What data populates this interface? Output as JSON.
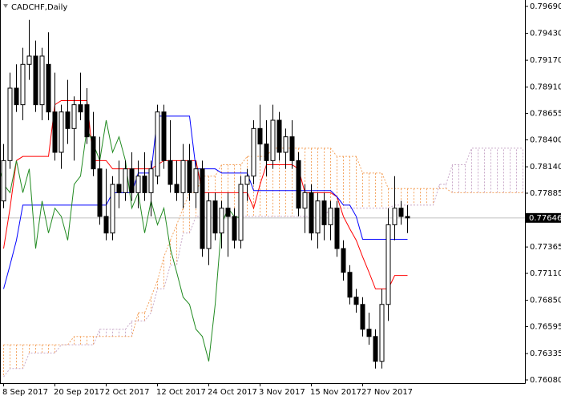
{
  "chart_data": {
    "type": "candlestick",
    "title": "CADCHF,Daily",
    "categories": [
      "8 Sep 2017",
      null,
      null,
      null,
      null,
      null,
      null,
      null,
      "20 Sep 2017",
      null,
      null,
      null,
      null,
      null,
      null,
      null,
      "2 Oct 2017",
      null,
      null,
      null,
      null,
      null,
      null,
      null,
      "12 Oct 2017",
      null,
      null,
      null,
      null,
      null,
      null,
      null,
      "24 Oct 2017",
      null,
      null,
      null,
      null,
      null,
      null,
      null,
      "3 Nov 2017",
      null,
      null,
      null,
      null,
      null,
      null,
      null,
      "15 Nov 2017",
      null,
      null,
      null,
      null,
      null,
      null,
      null,
      "27 Nov 2017",
      null,
      null,
      null,
      null,
      null,
      null,
      null,
      null,
      null,
      null,
      null,
      null,
      null,
      null,
      null,
      null,
      null,
      null,
      null,
      null,
      null,
      null,
      null,
      null,
      null
    ],
    "ylim": [
      0.76049,
      0.79752
    ],
    "yticks": [
      {
        "value": 0.7969,
        "label": "0.79690"
      },
      {
        "value": 0.7943,
        "label": "0.79430"
      },
      {
        "value": 0.7917,
        "label": "0.79170"
      },
      {
        "value": 0.7891,
        "label": "0.78910"
      },
      {
        "value": 0.78655,
        "label": "0.78655"
      },
      {
        "value": 0.784,
        "label": "0.78400"
      },
      {
        "value": 0.7814,
        "label": "0.78140"
      },
      {
        "value": 0.77885,
        "label": "0.77885"
      },
      {
        "value": 0.77365,
        "label": "0.77365"
      },
      {
        "value": 0.7711,
        "label": "0.77110"
      },
      {
        "value": 0.7685,
        "label": "0.76850"
      },
      {
        "value": 0.76595,
        "label": "0.76595"
      },
      {
        "value": 0.76335,
        "label": "0.76335"
      },
      {
        "value": 0.7608,
        "label": "0.76080"
      }
    ],
    "ohlc": {
      "open": [
        0.7781,
        0.782,
        0.789,
        0.7874,
        0.7913,
        0.7921,
        0.7874,
        0.7913,
        0.7867,
        0.7828,
        0.7867,
        0.7851,
        0.7874,
        0.7874,
        0.7843,
        0.7812,
        0.7766,
        0.775,
        0.7797,
        0.7789,
        0.7812,
        0.7789,
        0.7805,
        0.7789,
        0.7805,
        0.7867,
        0.782,
        0.7797,
        0.7789,
        0.782,
        0.7789,
        0.7812,
        0.7735,
        0.7781,
        0.775,
        0.7774,
        0.7766,
        0.7743,
        0.7797,
        0.7805,
        0.7851,
        0.7836,
        0.782,
        0.7859,
        0.7828,
        0.7843,
        0.782,
        0.7774,
        0.7789,
        0.775,
        0.7781,
        0.7758,
        0.7774,
        0.7735,
        0.7712,
        0.7688,
        0.7681,
        0.7657,
        0.765,
        0.7626,
        0.7681,
        0.7758,
        0.7774,
        0.7766
      ],
      "high": [
        0.7836,
        0.7905,
        0.7913,
        0.7929,
        0.7956,
        0.7936,
        0.7929,
        0.7944,
        0.7905,
        0.7874,
        0.7898,
        0.7882,
        0.7905,
        0.789,
        0.7867,
        0.7843,
        0.7812,
        0.7805,
        0.782,
        0.782,
        0.7828,
        0.782,
        0.7828,
        0.782,
        0.7874,
        0.7874,
        0.7859,
        0.782,
        0.7836,
        0.7836,
        0.782,
        0.782,
        0.7789,
        0.7789,
        0.7781,
        0.7789,
        0.7774,
        0.7805,
        0.7812,
        0.7859,
        0.7874,
        0.7859,
        0.7874,
        0.7867,
        0.7851,
        0.7859,
        0.7828,
        0.7797,
        0.7797,
        0.7789,
        0.7789,
        0.7781,
        0.7781,
        0.7743,
        0.7719,
        0.7696,
        0.7688,
        0.7673,
        0.7657,
        0.7696,
        0.7774,
        0.7805,
        0.7781,
        0.7777
      ],
      "low": [
        0.7774,
        0.7812,
        0.7867,
        0.7859,
        0.7898,
        0.7867,
        0.7859,
        0.7859,
        0.782,
        0.7812,
        0.7836,
        0.782,
        0.7859,
        0.7836,
        0.7805,
        0.7758,
        0.7743,
        0.7743,
        0.7774,
        0.7781,
        0.7781,
        0.7774,
        0.7781,
        0.7766,
        0.7797,
        0.7812,
        0.7789,
        0.7781,
        0.7774,
        0.7781,
        0.7774,
        0.7727,
        0.7719,
        0.7743,
        0.7735,
        0.7727,
        0.7735,
        0.7735,
        0.7781,
        0.7797,
        0.782,
        0.7805,
        0.7812,
        0.782,
        0.7812,
        0.7812,
        0.7766,
        0.775,
        0.7743,
        0.7735,
        0.7743,
        0.7743,
        0.7727,
        0.7704,
        0.7681,
        0.7673,
        0.765,
        0.7642,
        0.7619,
        0.7619,
        0.7665,
        0.7743,
        0.7758,
        0.775
      ],
      "close": [
        0.782,
        0.789,
        0.7874,
        0.7913,
        0.7921,
        0.7874,
        0.7921,
        0.7867,
        0.7828,
        0.7867,
        0.7851,
        0.7874,
        0.7867,
        0.7843,
        0.7812,
        0.7766,
        0.775,
        0.7797,
        0.7789,
        0.7812,
        0.7789,
        0.7805,
        0.7789,
        0.7812,
        0.7867,
        0.782,
        0.7797,
        0.7789,
        0.782,
        0.7789,
        0.7812,
        0.7735,
        0.7781,
        0.775,
        0.7774,
        0.7766,
        0.7743,
        0.7797,
        0.7805,
        0.7851,
        0.7836,
        0.782,
        0.7859,
        0.7828,
        0.7843,
        0.782,
        0.7774,
        0.7789,
        0.775,
        0.7781,
        0.7758,
        0.7774,
        0.7735,
        0.7712,
        0.7688,
        0.7681,
        0.7657,
        0.765,
        0.7626,
        0.7681,
        0.7758,
        0.7774,
        0.7766,
        0.77646
      ]
    },
    "up_color": "#ffffff",
    "down_color": "#000000",
    "tenkan": {
      "color": "#ff0000",
      "values": [
        0.7735,
        0.7774,
        0.782,
        0.7824,
        0.7824,
        0.7824,
        0.7824,
        0.7824,
        0.7874,
        0.7878,
        0.7878,
        0.7878,
        0.7878,
        0.7878,
        0.782,
        0.782,
        0.782,
        0.7812,
        0.7812,
        0.7812,
        0.7812,
        0.7812,
        0.7812,
        0.7812,
        0.7816,
        0.782,
        0.782,
        0.782,
        0.782,
        0.782,
        0.782,
        0.7789,
        0.7789,
        0.7789,
        0.7789,
        0.7789,
        0.7789,
        0.7789,
        0.7789,
        0.7774,
        0.7797,
        0.7816,
        0.7816,
        0.7816,
        0.7816,
        0.7816,
        0.7812,
        0.7789,
        0.7789,
        0.7789,
        0.7789,
        0.7789,
        0.7785,
        0.7766,
        0.7754,
        0.7743,
        0.7727,
        0.7712,
        0.7696,
        0.7696,
        0.7696,
        0.7709,
        0.7709,
        0.7709
      ]
    },
    "kijun": {
      "color": "#0000ff",
      "values": [
        0.7696,
        0.7719,
        0.7743,
        0.7777,
        0.7777,
        0.7777,
        0.7777,
        0.7777,
        0.7777,
        0.7777,
        0.7777,
        0.7777,
        0.7777,
        0.7777,
        0.7777,
        0.7777,
        0.7777,
        0.7789,
        0.7789,
        0.7789,
        0.7789,
        0.7808,
        0.7808,
        0.7808,
        0.7863,
        0.7863,
        0.7863,
        0.7863,
        0.7863,
        0.7863,
        0.7812,
        0.7812,
        0.7812,
        0.7812,
        0.7808,
        0.7808,
        0.7808,
        0.7808,
        0.7808,
        0.7791,
        0.7791,
        0.7791,
        0.7791,
        0.7791,
        0.7791,
        0.7791,
        0.7791,
        0.7791,
        0.7791,
        0.7791,
        0.7791,
        0.7791,
        0.7785,
        0.7777,
        0.7777,
        0.7766,
        0.7744,
        0.7744,
        0.7744,
        0.7744,
        0.7744,
        0.7744,
        0.7744,
        0.7744
      ]
    },
    "chikou_color": "#228b22",
    "senkou_a": [
      0.7642,
      0.7642,
      0.7642,
      0.7642,
      0.7642,
      0.7642,
      0.7642,
      0.7642,
      0.7642,
      0.7642,
      0.7642,
      0.765,
      0.765,
      0.765,
      0.765,
      0.765,
      0.765,
      0.765,
      0.765,
      0.765,
      0.765,
      0.7673,
      0.7673,
      0.7688,
      0.7704,
      0.7727,
      0.7743,
      0.7758,
      0.7774,
      0.7789,
      0.7789,
      0.7805,
      0.7805,
      0.7805,
      0.7816,
      0.7816,
      0.7816,
      0.7816,
      0.7824,
      0.7824,
      0.7824,
      0.7824,
      0.7832,
      0.7832,
      0.7832,
      0.7832,
      0.7832,
      0.7832,
      0.7832,
      0.7832,
      0.7832,
      0.7832,
      0.7824,
      0.7824,
      0.7824,
      0.7824,
      0.7808,
      0.7808,
      0.7808,
      0.7808,
      0.7793,
      0.7793,
      0.7793,
      0.7793,
      0.7793,
      0.7793,
      0.7793,
      0.7793,
      0.7793,
      0.7793,
      0.7789,
      0.7789,
      0.7789,
      0.7789,
      0.7789,
      0.7789,
      0.7789,
      0.7789,
      0.7789,
      0.7789,
      0.7789,
      0.7789
    ],
    "senkou_b": [
      0.7611,
      0.7619,
      0.7619,
      0.7619,
      0.7634,
      0.7634,
      0.7634,
      0.7634,
      0.7634,
      0.7642,
      0.7642,
      0.7642,
      0.7642,
      0.7642,
      0.7642,
      0.7657,
      0.7657,
      0.7657,
      0.7657,
      0.7657,
      0.7665,
      0.7665,
      0.7665,
      0.7673,
      0.7696,
      0.7696,
      0.7719,
      0.7719,
      0.775,
      0.775,
      0.7766,
      0.7766,
      0.7766,
      0.7766,
      0.7766,
      0.7766,
      0.7766,
      0.7766,
      0.7766,
      0.7766,
      0.7766,
      0.7766,
      0.7766,
      0.7766,
      0.7766,
      0.7766,
      0.7766,
      0.7766,
      0.7766,
      0.7766,
      0.7766,
      0.7774,
      0.7774,
      0.7774,
      0.7774,
      0.7774,
      0.7774,
      0.7774,
      0.7774,
      0.7774,
      0.7774,
      0.7777,
      0.7777,
      0.7777,
      0.7777,
      0.7777,
      0.7777,
      0.7777,
      0.7797,
      0.7797,
      0.7816,
      0.7816,
      0.7816,
      0.7832,
      0.7832,
      0.7832,
      0.7832,
      0.7832,
      0.7832,
      0.7832,
      0.7832,
      0.7832
    ],
    "cloud_up_color": "#f4a460",
    "cloud_down_color": "#c9a9c9"
  }
}
